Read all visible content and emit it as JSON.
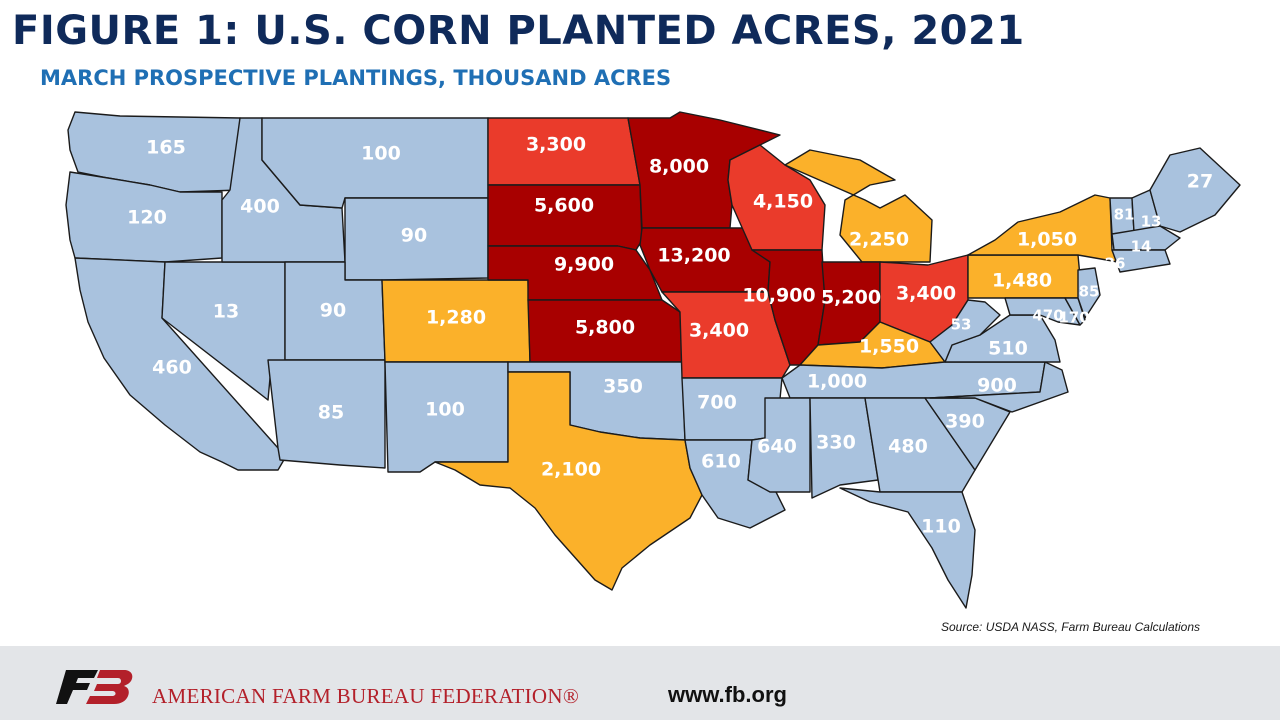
{
  "header": {
    "title": "FIGURE 1: U.S. CORN PLANTED ACRES, 2021",
    "subtitle": "MARCH PROSPECTIVE PLANTINGS, THOUSAND ACRES"
  },
  "colors": {
    "dark_red": "#a80000",
    "red": "#ea3b2b",
    "orange": "#fbb12a",
    "light_blue": "#a9c2de",
    "title": "#0f2a5a",
    "subtitle": "#1f6fb4",
    "brand_red": "#b3202a"
  },
  "states": [
    {
      "state": "WA",
      "label": "165",
      "category": "light_blue"
    },
    {
      "state": "OR",
      "label": "120",
      "category": "light_blue"
    },
    {
      "state": "CA",
      "label": "460",
      "category": "light_blue"
    },
    {
      "state": "ID",
      "label": "400",
      "category": "light_blue"
    },
    {
      "state": "NV",
      "label": "13",
      "category": "light_blue"
    },
    {
      "state": "MT",
      "label": "100",
      "category": "light_blue"
    },
    {
      "state": "WY",
      "label": "90",
      "category": "light_blue"
    },
    {
      "state": "UT",
      "label": "90",
      "category": "light_blue"
    },
    {
      "state": "AZ",
      "label": "85",
      "category": "light_blue"
    },
    {
      "state": "CO",
      "label": "1,280",
      "category": "orange"
    },
    {
      "state": "NM",
      "label": "100",
      "category": "light_blue"
    },
    {
      "state": "ND",
      "label": "3,300",
      "category": "red"
    },
    {
      "state": "SD",
      "label": "5,600",
      "category": "dark_red"
    },
    {
      "state": "NE",
      "label": "9,900",
      "category": "dark_red"
    },
    {
      "state": "KS",
      "label": "5,800",
      "category": "dark_red"
    },
    {
      "state": "OK",
      "label": "350",
      "category": "light_blue"
    },
    {
      "state": "TX",
      "label": "2,100",
      "category": "orange"
    },
    {
      "state": "MN",
      "label": "8,000",
      "category": "dark_red"
    },
    {
      "state": "IA",
      "label": "13,200",
      "category": "dark_red"
    },
    {
      "state": "MO",
      "label": "3,400",
      "category": "red"
    },
    {
      "state": "AR",
      "label": "700",
      "category": "light_blue"
    },
    {
      "state": "LA",
      "label": "610",
      "category": "light_blue"
    },
    {
      "state": "WI",
      "label": "4,150",
      "category": "red"
    },
    {
      "state": "IL",
      "label": "10,900",
      "category": "dark_red"
    },
    {
      "state": "MI",
      "label": "2,250",
      "category": "orange"
    },
    {
      "state": "IN",
      "label": "5,200",
      "category": "dark_red"
    },
    {
      "state": "OH",
      "label": "3,400",
      "category": "red"
    },
    {
      "state": "KY",
      "label": "1,550",
      "category": "orange"
    },
    {
      "state": "TN",
      "label": "1,000",
      "category": "light_blue"
    },
    {
      "state": "MS",
      "label": "640",
      "category": "light_blue"
    },
    {
      "state": "AL",
      "label": "330",
      "category": "light_blue"
    },
    {
      "state": "GA",
      "label": "480",
      "category": "light_blue"
    },
    {
      "state": "FL",
      "label": "110",
      "category": "light_blue"
    },
    {
      "state": "SC",
      "label": "390",
      "category": "light_blue"
    },
    {
      "state": "NC",
      "label": "900",
      "category": "light_blue"
    },
    {
      "state": "VA",
      "label": "510",
      "category": "light_blue"
    },
    {
      "state": "WV",
      "label": "53",
      "category": "light_blue"
    },
    {
      "state": "PA",
      "label": "1,480",
      "category": "orange"
    },
    {
      "state": "NY",
      "label": "1,050",
      "category": "orange"
    },
    {
      "state": "MD",
      "label": "470",
      "category": "light_blue"
    },
    {
      "state": "DE",
      "label": "170",
      "category": "light_blue"
    },
    {
      "state": "NJ",
      "label": "85",
      "category": "light_blue"
    },
    {
      "state": "VT",
      "label": "81",
      "category": "light_blue"
    },
    {
      "state": "NH",
      "label": "13",
      "category": "light_blue"
    },
    {
      "state": "MA",
      "label": "14",
      "category": "light_blue"
    },
    {
      "state": "CT",
      "label": "26",
      "category": "light_blue"
    },
    {
      "state": "ME",
      "label": "27",
      "category": "light_blue"
    }
  ],
  "source": "Source: USDA NASS, Farm Bureau Calculations",
  "footer": {
    "org_name": "AMERICAN FARM BUREAU FEDERATION®",
    "website": "www.fb.org"
  }
}
